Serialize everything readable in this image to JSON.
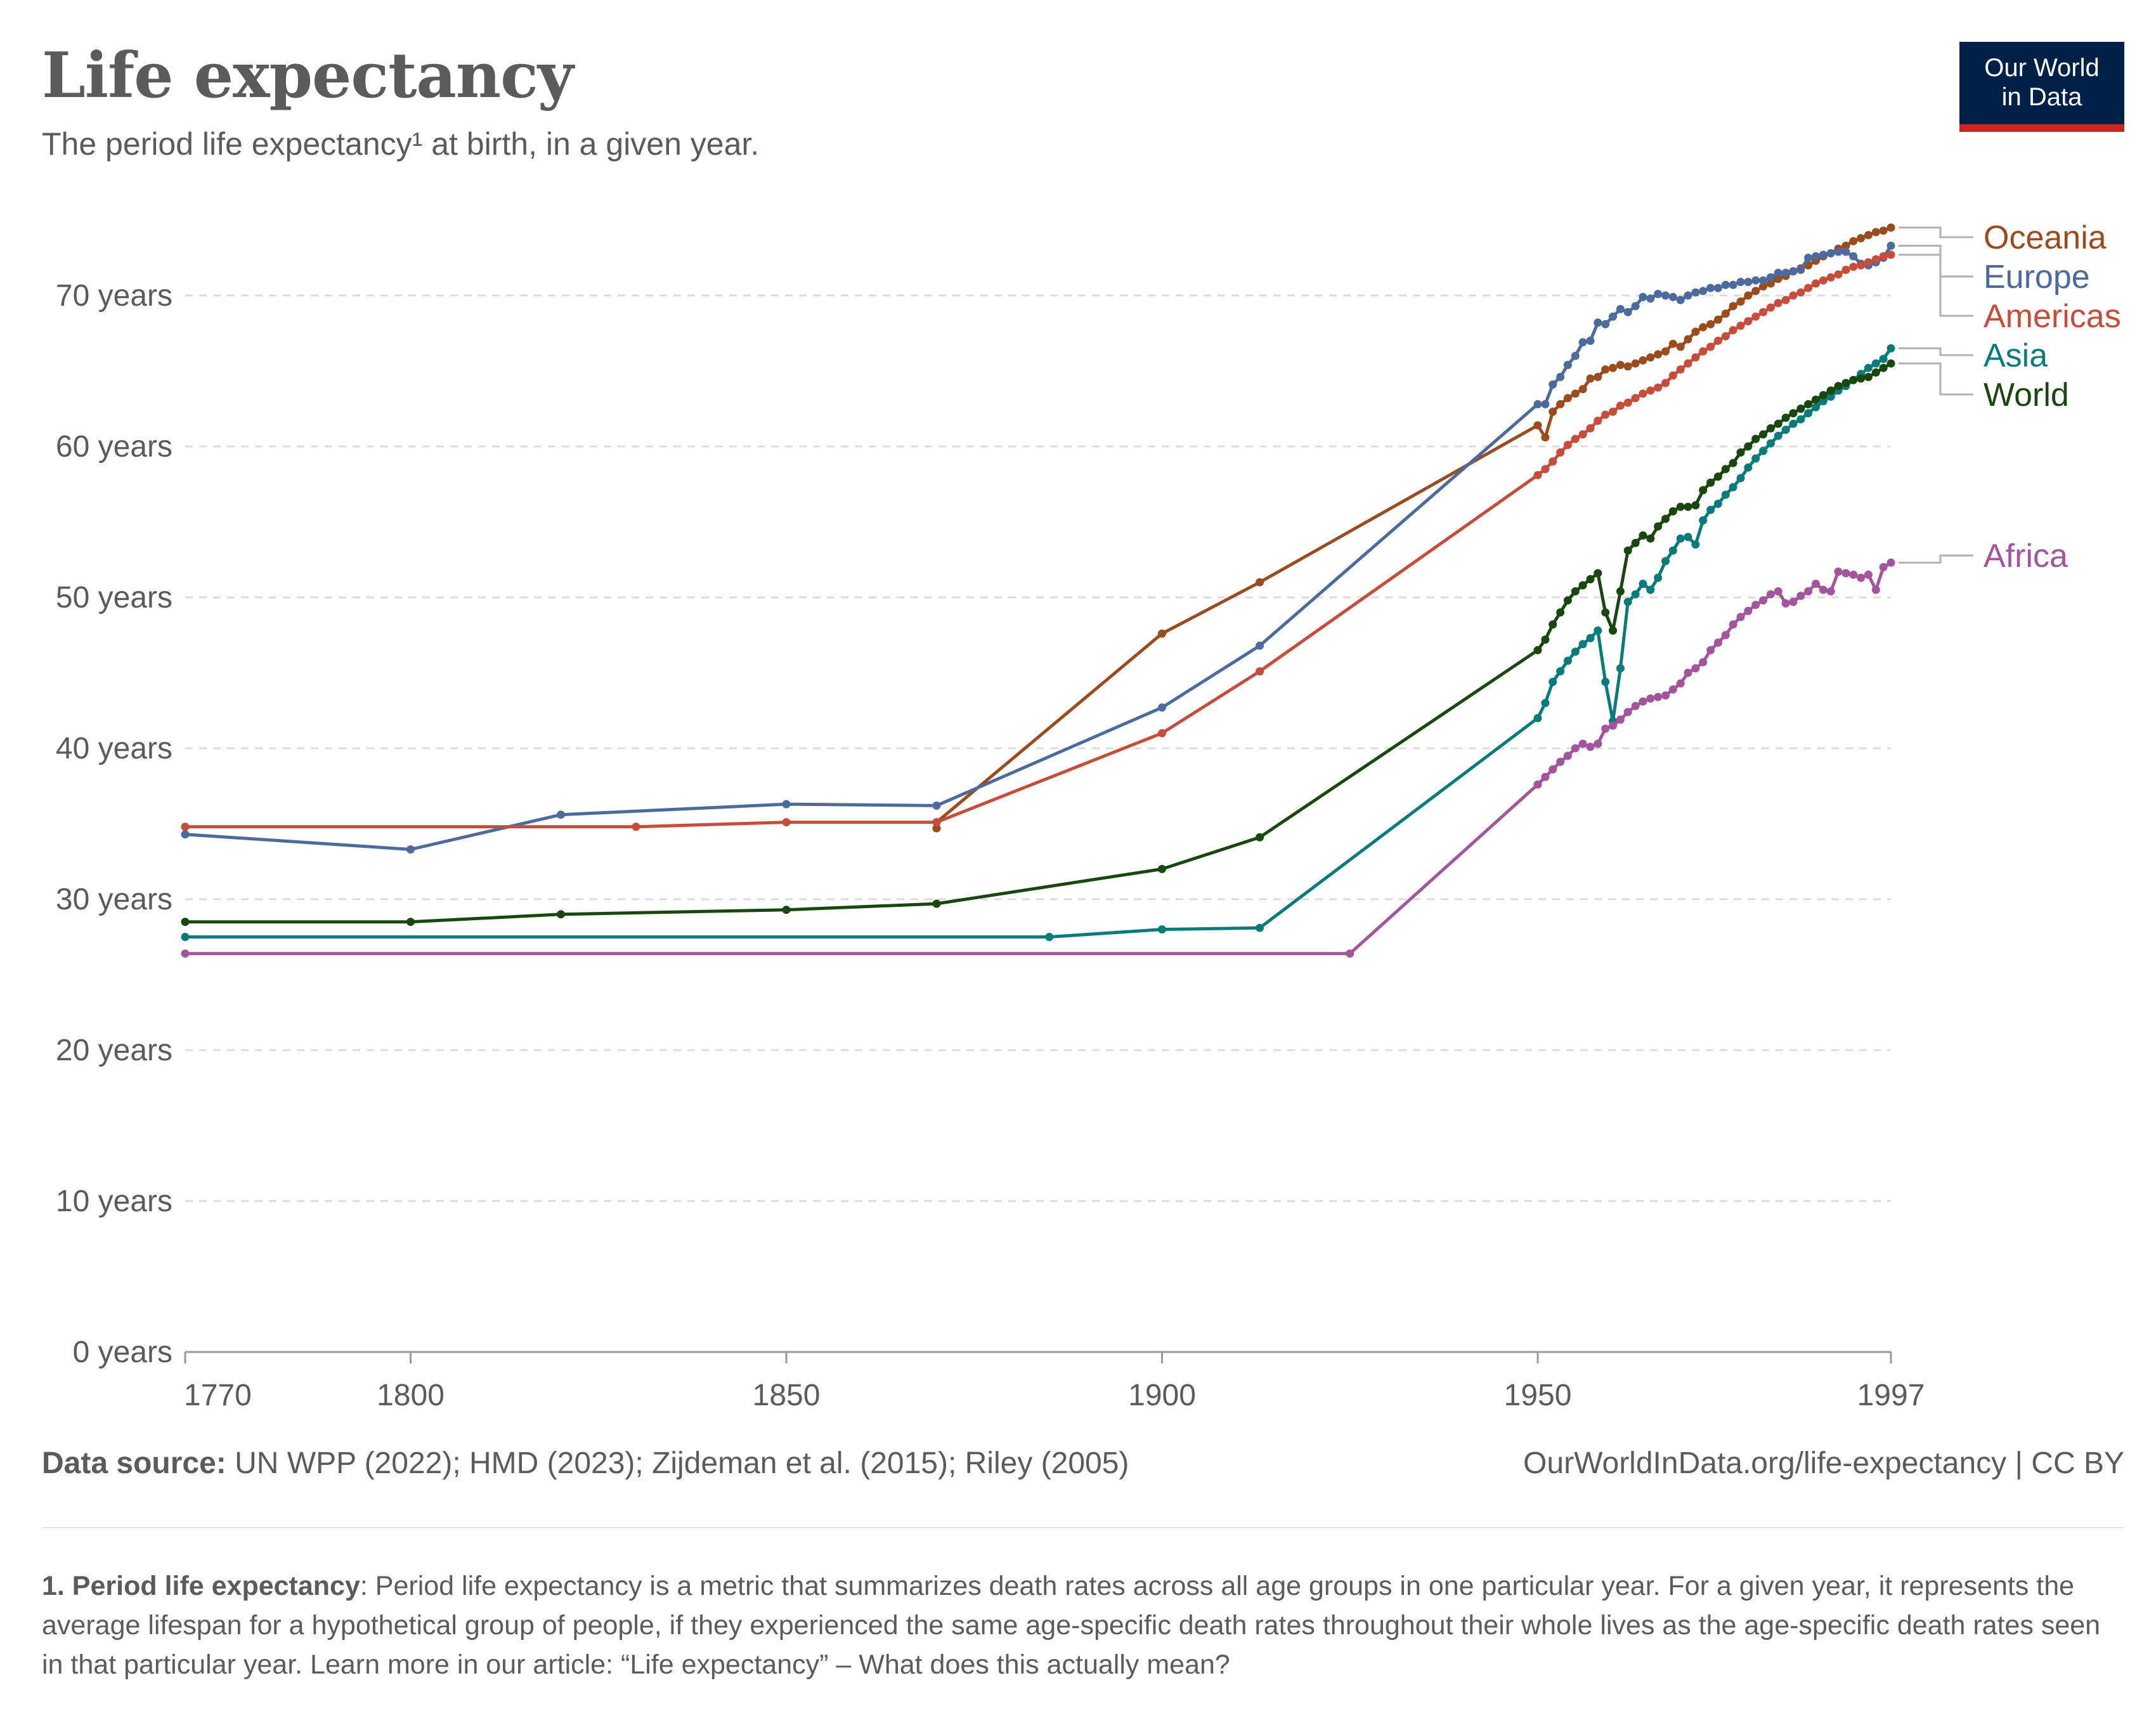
{
  "header": {
    "title": "Life expectancy",
    "subtitle": "The period life expectancy¹ at birth, in a given year.",
    "logo_line1": "Our World",
    "logo_line2": "in Data"
  },
  "footer": {
    "source_label": "Data source:",
    "source_text": " UN WPP (2022); HMD (2023); Zijdeman et al. (2015); Riley (2005)",
    "url_text": "OurWorldInData.org/life-expectancy  | CC BY"
  },
  "note": {
    "label": "1. Period life expectancy",
    "text": ": Period life expectancy is a metric that summarizes death rates across all age groups in one particular year. For a given year, it represents the average lifespan for a hypothetical group of people, if they experienced the same age-specific death rates throughout their whole lives as the age-specific death rates seen in that particular year. Learn more in our article: “Life expectancy” – What does this actually mean?"
  },
  "chart_data": {
    "type": "line",
    "title": "Life expectancy",
    "xlabel": "",
    "ylabel": "",
    "xlim": [
      1770,
      1997
    ],
    "ylim": [
      0,
      70
    ],
    "x_ticks": [
      1770,
      1800,
      1850,
      1900,
      1950,
      1997
    ],
    "y_ticks": [
      0,
      10,
      20,
      30,
      40,
      50,
      60,
      70
    ],
    "y_tick_labels": [
      "0 years",
      "10 years",
      "20 years",
      "30 years",
      "40 years",
      "50 years",
      "60 years",
      "70 years"
    ],
    "grid": true,
    "series": [
      {
        "name": "Oceania",
        "color": "#9a4c1f",
        "x": [
          1870,
          1870,
          1900,
          1913,
          1950,
          1951,
          1952,
          1953,
          1954,
          1955,
          1956,
          1957,
          1958,
          1959,
          1960,
          1961,
          1962,
          1963,
          1964,
          1965,
          1966,
          1967,
          1968,
          1969,
          1970,
          1971,
          1972,
          1973,
          1974,
          1975,
          1976,
          1977,
          1978,
          1979,
          1980,
          1981,
          1982,
          1983,
          1984,
          1985,
          1986,
          1987,
          1988,
          1989,
          1990,
          1991,
          1992,
          1993,
          1994,
          1995,
          1996,
          1997
        ],
        "y": [
          34.7,
          35.1,
          47.6,
          51.0,
          61.4,
          60.6,
          62.3,
          62.8,
          63.2,
          63.5,
          63.8,
          64.5,
          64.6,
          65.1,
          65.2,
          65.4,
          65.3,
          65.5,
          65.7,
          65.9,
          66.1,
          66.3,
          66.8,
          66.6,
          67.1,
          67.6,
          67.9,
          68.1,
          68.4,
          68.8,
          69.3,
          69.6,
          70.0,
          70.3,
          70.6,
          70.8,
          71.1,
          71.3,
          71.6,
          71.8,
          72.0,
          72.3,
          72.6,
          72.8,
          73.1,
          73.3,
          73.6,
          73.8,
          74.0,
          74.2,
          74.3,
          74.5
        ]
      },
      {
        "name": "Europe",
        "color": "#4c6a9c",
        "x": [
          1770,
          1800,
          1820,
          1850,
          1870,
          1900,
          1913,
          1950,
          1951,
          1952,
          1953,
          1954,
          1955,
          1956,
          1957,
          1958,
          1959,
          1960,
          1961,
          1962,
          1963,
          1964,
          1965,
          1966,
          1967,
          1968,
          1969,
          1970,
          1971,
          1972,
          1973,
          1974,
          1975,
          1976,
          1977,
          1978,
          1979,
          1980,
          1981,
          1982,
          1983,
          1984,
          1985,
          1986,
          1987,
          1988,
          1989,
          1990,
          1991,
          1992,
          1993,
          1994,
          1995,
          1996,
          1997
        ],
        "y": [
          34.3,
          33.3,
          35.6,
          36.3,
          36.2,
          42.7,
          46.8,
          62.8,
          62.8,
          64.1,
          64.6,
          65.4,
          66.0,
          66.9,
          67.0,
          68.2,
          68.1,
          68.6,
          69.1,
          68.9,
          69.3,
          69.9,
          69.8,
          70.1,
          70.0,
          69.9,
          69.7,
          70.0,
          70.2,
          70.3,
          70.5,
          70.5,
          70.7,
          70.7,
          70.9,
          70.9,
          71.0,
          71.0,
          71.2,
          71.5,
          71.5,
          71.6,
          71.7,
          72.5,
          72.6,
          72.7,
          72.8,
          72.9,
          72.9,
          72.6,
          72.1,
          72.0,
          72.2,
          72.5,
          73.3
        ]
      },
      {
        "name": "Americas",
        "color": "#c64d3b",
        "x": [
          1770,
          1830,
          1850,
          1870,
          1900,
          1913,
          1950,
          1951,
          1952,
          1953,
          1954,
          1955,
          1956,
          1957,
          1958,
          1959,
          1960,
          1961,
          1962,
          1963,
          1964,
          1965,
          1966,
          1967,
          1968,
          1969,
          1970,
          1971,
          1972,
          1973,
          1974,
          1975,
          1976,
          1977,
          1978,
          1979,
          1980,
          1981,
          1982,
          1983,
          1984,
          1985,
          1986,
          1987,
          1988,
          1989,
          1990,
          1991,
          1992,
          1993,
          1994,
          1995,
          1996,
          1997
        ],
        "y": [
          34.8,
          34.8,
          35.1,
          35.1,
          41.0,
          45.1,
          58.1,
          58.5,
          59.0,
          59.6,
          60.1,
          60.5,
          60.8,
          61.2,
          61.7,
          62.1,
          62.3,
          62.7,
          62.9,
          63.2,
          63.5,
          63.7,
          63.9,
          64.2,
          64.7,
          65.1,
          65.5,
          65.9,
          66.3,
          66.6,
          67.0,
          67.3,
          67.7,
          68.0,
          68.3,
          68.6,
          68.9,
          69.2,
          69.5,
          69.7,
          70.0,
          70.2,
          70.5,
          70.8,
          71.0,
          71.2,
          71.4,
          71.7,
          71.9,
          72.0,
          72.2,
          72.4,
          72.6,
          72.7
        ]
      },
      {
        "name": "Asia",
        "color": "#0b7b7a",
        "x": [
          1770,
          1885,
          1900,
          1913,
          1950,
          1951,
          1952,
          1953,
          1954,
          1955,
          1956,
          1957,
          1958,
          1959,
          1960,
          1961,
          1962,
          1963,
          1964,
          1965,
          1966,
          1967,
          1968,
          1969,
          1970,
          1971,
          1972,
          1973,
          1974,
          1975,
          1976,
          1977,
          1978,
          1979,
          1980,
          1981,
          1982,
          1983,
          1984,
          1985,
          1986,
          1987,
          1988,
          1989,
          1990,
          1991,
          1992,
          1993,
          1994,
          1995,
          1996,
          1997
        ],
        "y": [
          27.5,
          27.5,
          28.0,
          28.1,
          42.0,
          43.0,
          44.4,
          45.1,
          45.8,
          46.4,
          46.9,
          47.3,
          47.8,
          44.4,
          41.8,
          45.3,
          49.7,
          50.2,
          50.9,
          50.5,
          51.3,
          52.4,
          53.1,
          53.9,
          54.0,
          53.5,
          55.1,
          55.8,
          56.2,
          56.8,
          57.3,
          57.9,
          58.6,
          59.2,
          59.7,
          60.2,
          60.7,
          61.1,
          61.5,
          61.8,
          62.2,
          62.6,
          63.0,
          63.3,
          63.7,
          64.0,
          64.4,
          64.8,
          65.2,
          65.5,
          65.8,
          66.5
        ]
      },
      {
        "name": "World",
        "color": "#18470f",
        "x": [
          1770,
          1800,
          1820,
          1850,
          1870,
          1900,
          1913,
          1950,
          1951,
          1952,
          1953,
          1954,
          1955,
          1956,
          1957,
          1958,
          1959,
          1960,
          1961,
          1962,
          1963,
          1964,
          1965,
          1966,
          1967,
          1968,
          1969,
          1970,
          1971,
          1972,
          1973,
          1974,
          1975,
          1976,
          1977,
          1978,
          1979,
          1980,
          1981,
          1982,
          1983,
          1984,
          1985,
          1986,
          1987,
          1988,
          1989,
          1990,
          1991,
          1992,
          1993,
          1994,
          1995,
          1996,
          1997
        ],
        "y": [
          28.5,
          28.5,
          29.0,
          29.3,
          29.7,
          32.0,
          34.1,
          46.5,
          47.2,
          48.2,
          49.0,
          49.8,
          50.4,
          50.8,
          51.2,
          51.6,
          49.0,
          47.8,
          50.4,
          53.1,
          53.6,
          54.1,
          53.9,
          54.7,
          55.2,
          55.7,
          56.0,
          56.0,
          56.1,
          57.1,
          57.6,
          58.0,
          58.5,
          58.9,
          59.6,
          60.0,
          60.5,
          60.8,
          61.2,
          61.5,
          61.9,
          62.2,
          62.5,
          62.8,
          63.1,
          63.4,
          63.7,
          64.0,
          64.2,
          64.4,
          64.5,
          64.6,
          64.9,
          65.2,
          65.5
        ]
      },
      {
        "name": "Africa",
        "color": "#a2559c",
        "x": [
          1770,
          1925,
          1950,
          1951,
          1952,
          1953,
          1954,
          1955,
          1956,
          1957,
          1958,
          1959,
          1960,
          1961,
          1962,
          1963,
          1964,
          1965,
          1966,
          1967,
          1968,
          1969,
          1970,
          1971,
          1972,
          1973,
          1974,
          1975,
          1976,
          1977,
          1978,
          1979,
          1980,
          1981,
          1982,
          1983,
          1984,
          1985,
          1986,
          1987,
          1988,
          1989,
          1990,
          1991,
          1992,
          1993,
          1994,
          1995,
          1996,
          1997
        ],
        "y": [
          26.4,
          26.4,
          37.6,
          38.1,
          38.6,
          39.1,
          39.5,
          40.0,
          40.3,
          40.1,
          40.3,
          41.3,
          41.5,
          41.9,
          42.4,
          42.8,
          43.1,
          43.3,
          43.4,
          43.5,
          43.9,
          44.3,
          45.0,
          45.3,
          45.7,
          46.5,
          47.0,
          47.5,
          48.2,
          48.7,
          49.1,
          49.5,
          49.8,
          50.2,
          50.4,
          49.6,
          49.7,
          50.1,
          50.4,
          50.9,
          50.5,
          50.4,
          51.7,
          51.6,
          51.5,
          51.3,
          51.5,
          50.5,
          52.0,
          52.3
        ]
      }
    ]
  }
}
